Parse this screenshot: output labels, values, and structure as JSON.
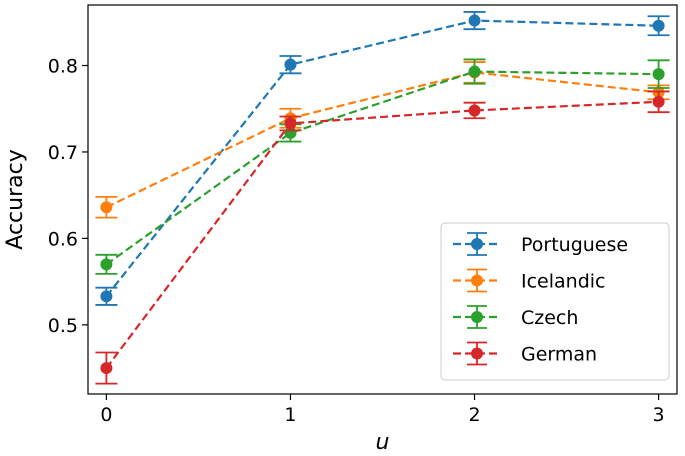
{
  "chart_data": {
    "type": "line",
    "title": "",
    "xlabel": "u",
    "ylabel": "Accuracy",
    "x": [
      0,
      1,
      2,
      3
    ],
    "x_ticks": [
      "0",
      "1",
      "2",
      "3"
    ],
    "y_ticks": [
      "0.5",
      "0.6",
      "0.7",
      "0.8"
    ],
    "xlim": [
      -0.1,
      3.1
    ],
    "ylim": [
      0.42,
      0.87
    ],
    "grid": false,
    "legend_position": "lower-right",
    "line_style": "dashed",
    "error_bars": true,
    "series": [
      {
        "name": "Portuguese",
        "color": "#1f77b4",
        "values": [
          0.533,
          0.801,
          0.852,
          0.846
        ],
        "errors": [
          0.01,
          0.01,
          0.01,
          0.011
        ]
      },
      {
        "name": "Icelandic",
        "color": "#ff7f0e",
        "values": [
          0.636,
          0.739,
          0.792,
          0.769
        ],
        "errors": [
          0.012,
          0.011,
          0.012,
          0.008
        ]
      },
      {
        "name": "Czech",
        "color": "#2ca02c",
        "values": [
          0.57,
          0.722,
          0.793,
          0.79
        ],
        "errors": [
          0.011,
          0.01,
          0.014,
          0.016
        ]
      },
      {
        "name": "German",
        "color": "#d62728",
        "values": [
          0.45,
          0.733,
          0.748,
          0.758
        ],
        "errors": [
          0.018,
          0.008,
          0.009,
          0.012
        ]
      }
    ]
  }
}
